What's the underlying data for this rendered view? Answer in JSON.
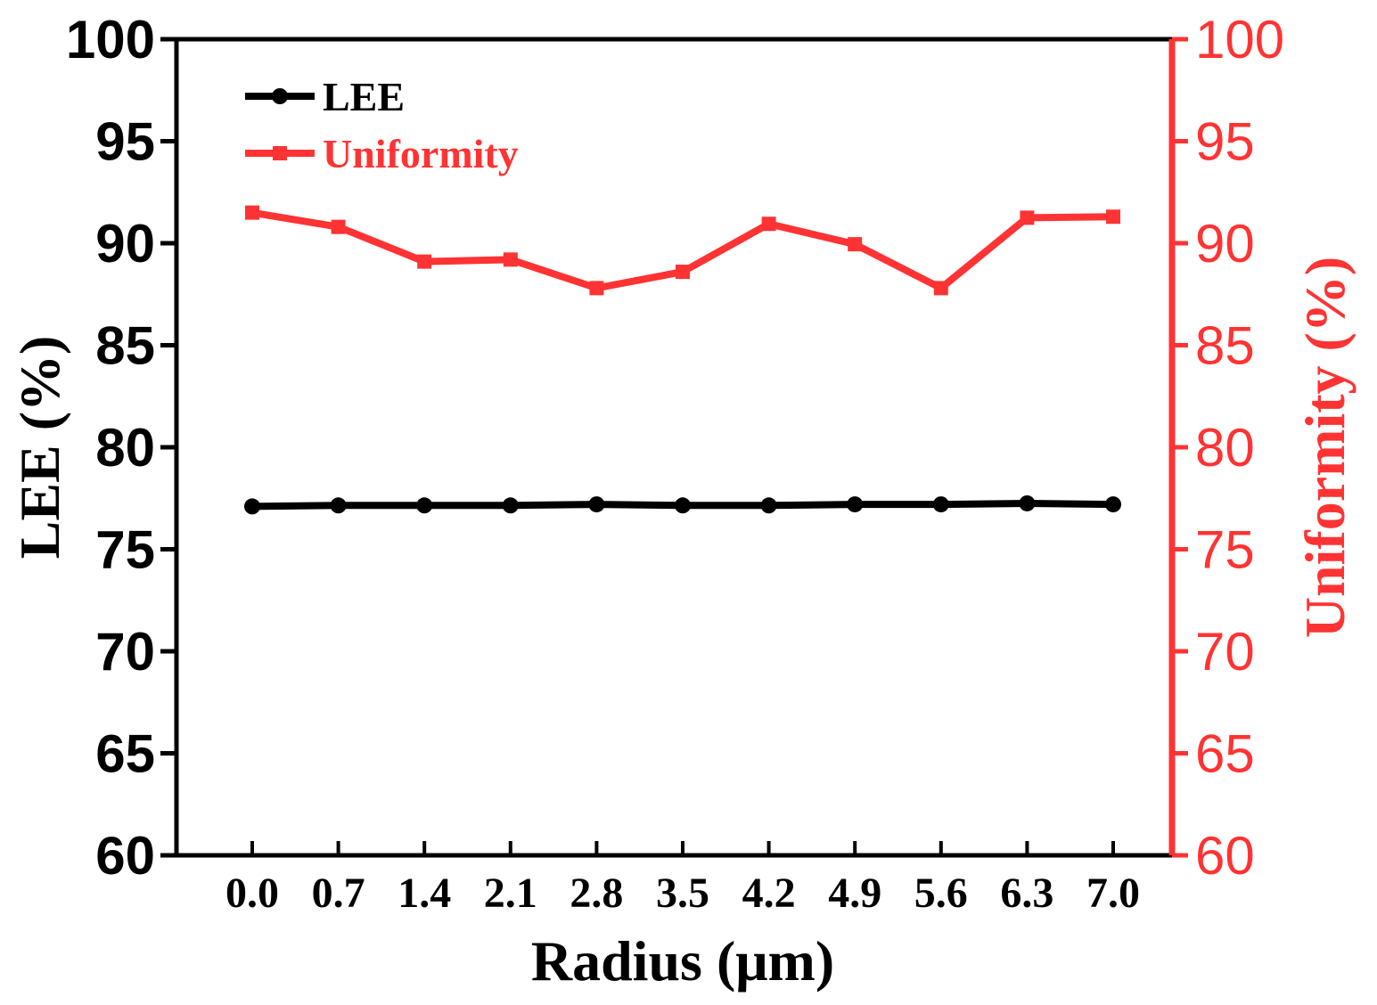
{
  "chart_data": {
    "type": "line",
    "xlabel": "Radius (μm)",
    "ylabel_left": "LEE (%)",
    "ylabel_right": "Uniformity (%)",
    "categories": [
      "0.0",
      "0.7",
      "1.4",
      "2.1",
      "2.8",
      "3.5",
      "4.2",
      "4.9",
      "5.6",
      "6.3",
      "7.0"
    ],
    "ylim_left": [
      60,
      100
    ],
    "ylim_right": [
      60,
      100
    ],
    "yticks": [
      60,
      65,
      70,
      75,
      80,
      85,
      90,
      95,
      100
    ],
    "yticks_labels": [
      "60",
      "65",
      "70",
      "75",
      "80",
      "85",
      "90",
      "95",
      "100"
    ],
    "legend_position": "top-left",
    "series": [
      {
        "name": "LEE",
        "axis": "left",
        "marker": "circle",
        "color": "#000000",
        "values": [
          77.1,
          77.15,
          77.15,
          77.15,
          77.2,
          77.15,
          77.15,
          77.2,
          77.2,
          77.25,
          77.2
        ]
      },
      {
        "name": "Uniformity",
        "axis": "right",
        "marker": "square",
        "color": "#ff3030",
        "values": [
          91.5,
          90.8,
          89.1,
          89.2,
          87.8,
          88.6,
          90.95,
          89.95,
          87.8,
          91.25,
          91.3
        ]
      }
    ]
  }
}
